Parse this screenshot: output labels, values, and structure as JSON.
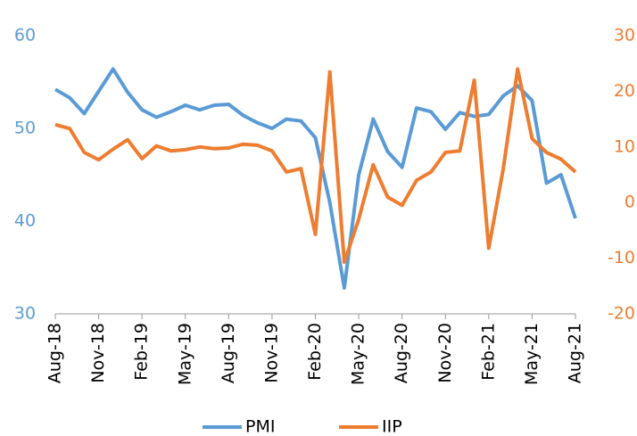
{
  "chart_data": {
    "type": "line",
    "categories": [
      "Aug-18",
      null,
      null,
      "Nov-18",
      null,
      null,
      "Feb-19",
      null,
      null,
      "May-19",
      null,
      null,
      "Aug-19",
      null,
      null,
      "Nov-19",
      null,
      null,
      "Feb-20",
      null,
      null,
      "May-20",
      null,
      null,
      "Aug-20",
      null,
      null,
      "Nov-20",
      null,
      null,
      "Feb-21",
      null,
      null,
      "May-21",
      null,
      null,
      "Aug-21"
    ],
    "series": [
      {
        "name": "PMI",
        "color": "#5b9bd5",
        "values": [
          54.2,
          53.3,
          51.6,
          54.0,
          56.4,
          53.9,
          52.0,
          51.2,
          51.8,
          52.5,
          52.0,
          52.5,
          52.6,
          51.4,
          50.6,
          50.0,
          51.0,
          50.8,
          49.0,
          42.0,
          32.8,
          45.0,
          51.0,
          47.5,
          45.8,
          52.2,
          51.8,
          49.9,
          51.7,
          51.3,
          51.5,
          53.5,
          54.6,
          53.0,
          44.1,
          45.0,
          40.3
        ]
      },
      {
        "name": "IIP",
        "color": "#ed7d31",
        "axis": "y2",
        "values": [
          14.0,
          13.3,
          9.0,
          7.7,
          9.6,
          11.3,
          7.9,
          10.2,
          9.3,
          9.5,
          10.0,
          9.7,
          9.8,
          10.5,
          10.3,
          9.3,
          5.5,
          6.1,
          -5.7,
          23.5,
          -10.7,
          -3.0,
          6.8,
          1.0,
          -0.5,
          4.0,
          5.5,
          9.0,
          9.3,
          22.0,
          -8.2,
          6.0,
          24.0,
          11.5,
          9.0,
          7.8,
          5.5
        ]
      }
    ],
    "ylim": [
      30,
      60
    ],
    "yticks": [
      30,
      40,
      50,
      60
    ],
    "y2lim": [
      -20,
      30
    ],
    "y2ticks": [
      -20,
      -10,
      0,
      10,
      20,
      30
    ],
    "legend": "bottom"
  }
}
